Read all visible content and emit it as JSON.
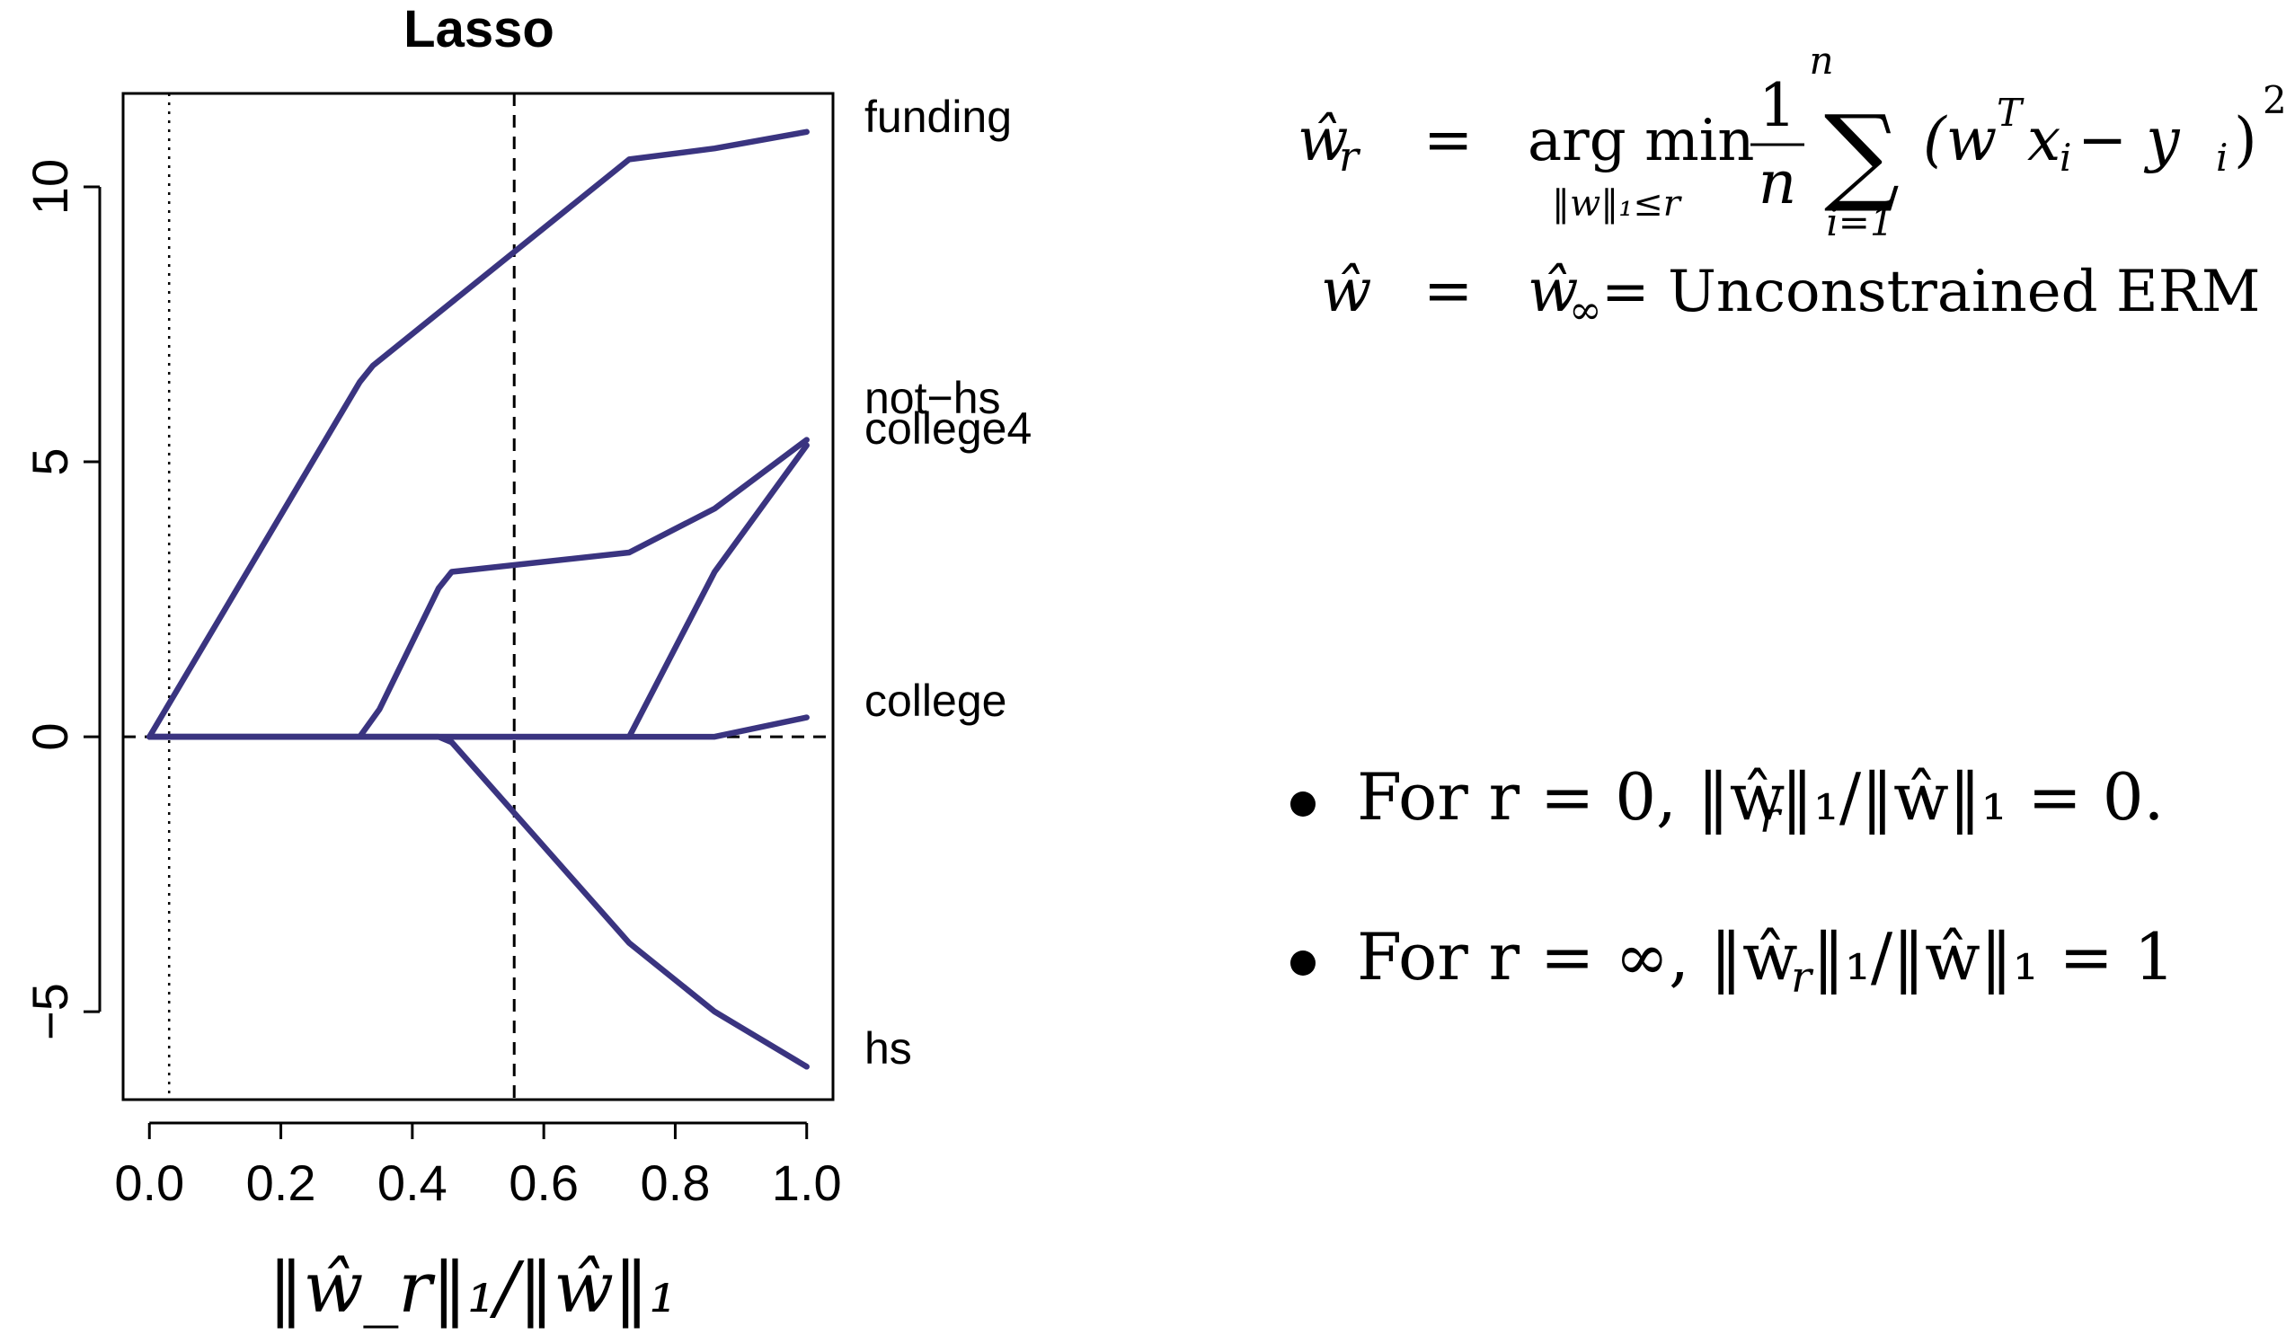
{
  "chart_data": {
    "type": "line",
    "title": "Lasso",
    "xlabel": "‖ŵ_r‖₁/‖ŵ‖₁",
    "ylabel": "",
    "xlim": [
      -0.04,
      1.04
    ],
    "ylim": [
      -6.6,
      11.7
    ],
    "xticks": [
      0.0,
      0.2,
      0.4,
      0.6,
      0.8,
      1.0
    ],
    "xtick_labels": [
      "0.0",
      "0.2",
      "0.4",
      "0.6",
      "0.8",
      "1.0"
    ],
    "yticks": [
      -5,
      0,
      5,
      10
    ],
    "ytick_labels": [
      "−5",
      "0",
      "5",
      "10"
    ],
    "reference_lines": {
      "dotted_vertical_x": 0.03,
      "dashed_vertical_x": 0.555,
      "dashed_horizontal_y": 0
    },
    "line_color": "#3a3480",
    "series": [
      {
        "name": "funding",
        "x": [
          0.0,
          0.32,
          0.34,
          0.73,
          0.86,
          1.0
        ],
        "y": [
          0.0,
          6.45,
          6.75,
          10.5,
          10.7,
          11.0
        ]
      },
      {
        "name": "not−hs",
        "x": [
          0.0,
          0.32,
          0.35,
          0.44,
          0.46,
          0.73,
          0.86,
          1.0
        ],
        "y": [
          0.0,
          0.0,
          0.5,
          2.7,
          3.0,
          3.35,
          4.15,
          5.4
        ]
      },
      {
        "name": "college4",
        "x": [
          0.0,
          0.73,
          0.86,
          1.0
        ],
        "y": [
          0.0,
          0.0,
          3.0,
          5.3
        ]
      },
      {
        "name": "college",
        "x": [
          0.0,
          0.86,
          1.0
        ],
        "y": [
          0.0,
          0.0,
          0.35
        ]
      },
      {
        "name": "hs",
        "x": [
          0.0,
          0.44,
          0.46,
          0.73,
          0.86,
          1.0
        ],
        "y": [
          0.0,
          0.0,
          -0.1,
          -3.75,
          -5.0,
          -6.0
        ]
      }
    ]
  },
  "equations": {
    "line1": {
      "lhs": "ŵ",
      "lhs_sub": "r",
      "eq": "=",
      "argmin_top": "arg min",
      "argmin_sub": "‖w‖₁≤r",
      "frac_num": "1",
      "frac_den": "n",
      "sum_symbol": "∑",
      "sum_top": "n",
      "sum_bottom": "i=1",
      "summand": "(w",
      "summand_sup": "T",
      "summand_rest": "x",
      "summand_sub1": "i",
      "summand_minus": " − y",
      "summand_sub2": "i",
      "summand_close": ")",
      "summand_pow": "2"
    },
    "line2": {
      "lhs": "ŵ",
      "eq": "=",
      "rhs_w": "ŵ",
      "rhs_sub": "∞",
      "rhs_rest": " = Unconstrained ERM"
    }
  },
  "bullets": [
    {
      "marker": "•",
      "text": "For r = 0, ‖ŵ",
      "sub": "r",
      "rest": "‖₁/‖ŵ‖₁ = 0."
    },
    {
      "marker": "•",
      "text": "For r = ∞, ‖ŵ",
      "sub": "r",
      "rest": "‖₁/‖ŵ‖₁ = 1"
    }
  ]
}
